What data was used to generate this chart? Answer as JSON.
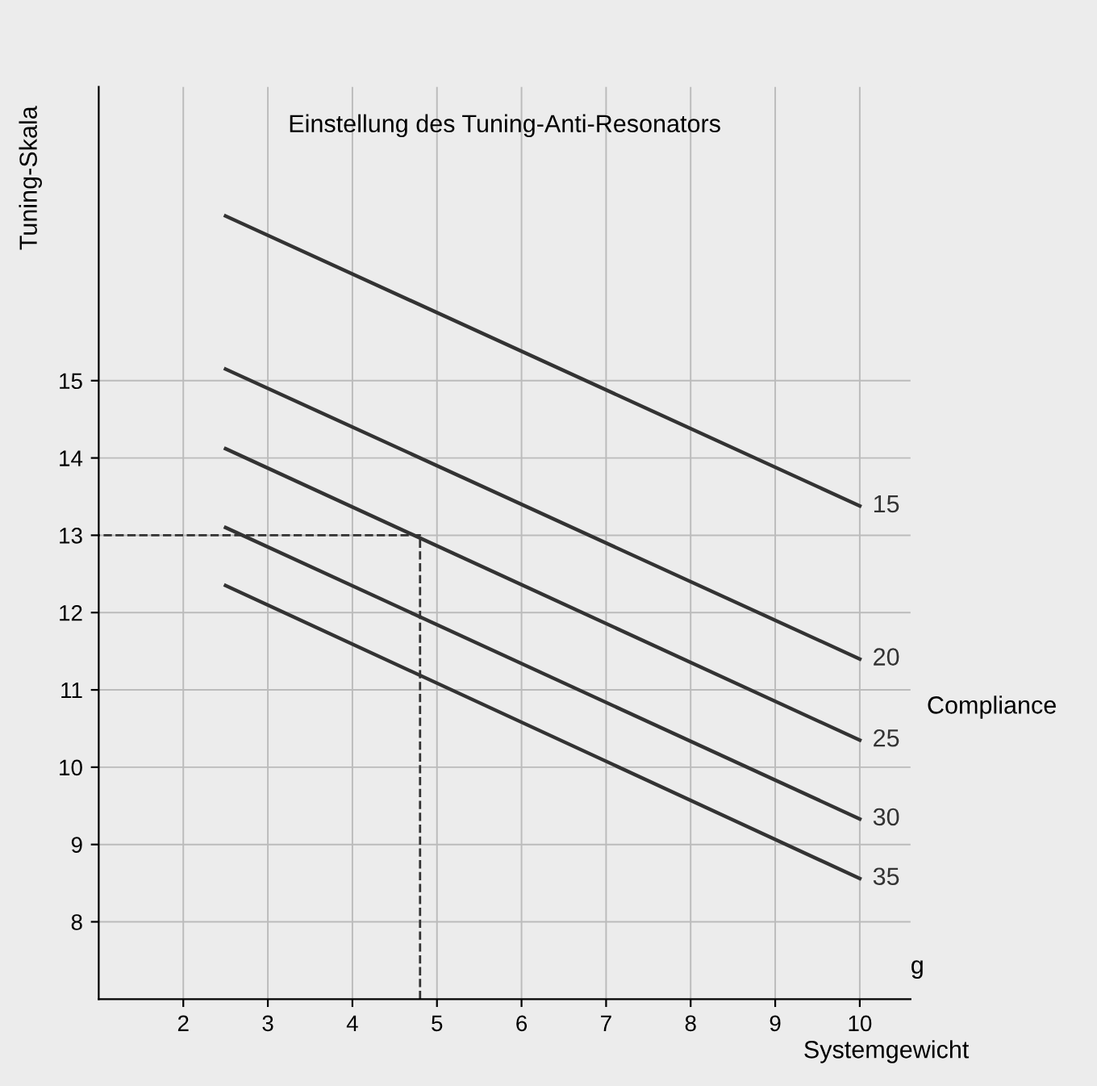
{
  "chart_data": {
    "type": "line",
    "title": "Einstellung des Tuning-Anti-Resonators",
    "xlabel": "Systemgewicht",
    "ylabel": "Tuning-Skala",
    "annotations": [
      "Compliance",
      "g"
    ],
    "series": [
      {
        "name": "15",
        "color": "#333333",
        "x": [
          2.5,
          10
        ],
        "values": [
          17.13,
          13.38
        ]
      },
      {
        "name": "20",
        "color": "#333333",
        "x": [
          2.5,
          10
        ],
        "values": [
          15.15,
          11.4
        ]
      },
      {
        "name": "25",
        "color": "#333333",
        "x": [
          2.5,
          10
        ],
        "values": [
          14.12,
          10.35
        ]
      },
      {
        "name": "30",
        "color": "#333333",
        "x": [
          2.5,
          10
        ],
        "values": [
          13.1,
          9.33
        ]
      },
      {
        "name": "35",
        "color": "#333333",
        "x": [
          2.5,
          10
        ],
        "values": [
          12.35,
          8.56
        ]
      },
      {
        "color": "#333333",
        "line_style": "dashed",
        "x": [
          4.8,
          4.8,
          1
        ],
        "values": [
          7,
          13,
          13
        ]
      }
    ],
    "xlim": [
      1,
      10.6
    ],
    "ylim": [
      7,
      18.8
    ],
    "xticks": [
      2,
      3,
      4,
      5,
      6,
      7,
      8,
      9,
      10
    ],
    "yticks": [
      8,
      9,
      10,
      11,
      12,
      13,
      14,
      15
    ],
    "grid": true,
    "legend": false,
    "marker": "none",
    "line_style": "solid"
  }
}
